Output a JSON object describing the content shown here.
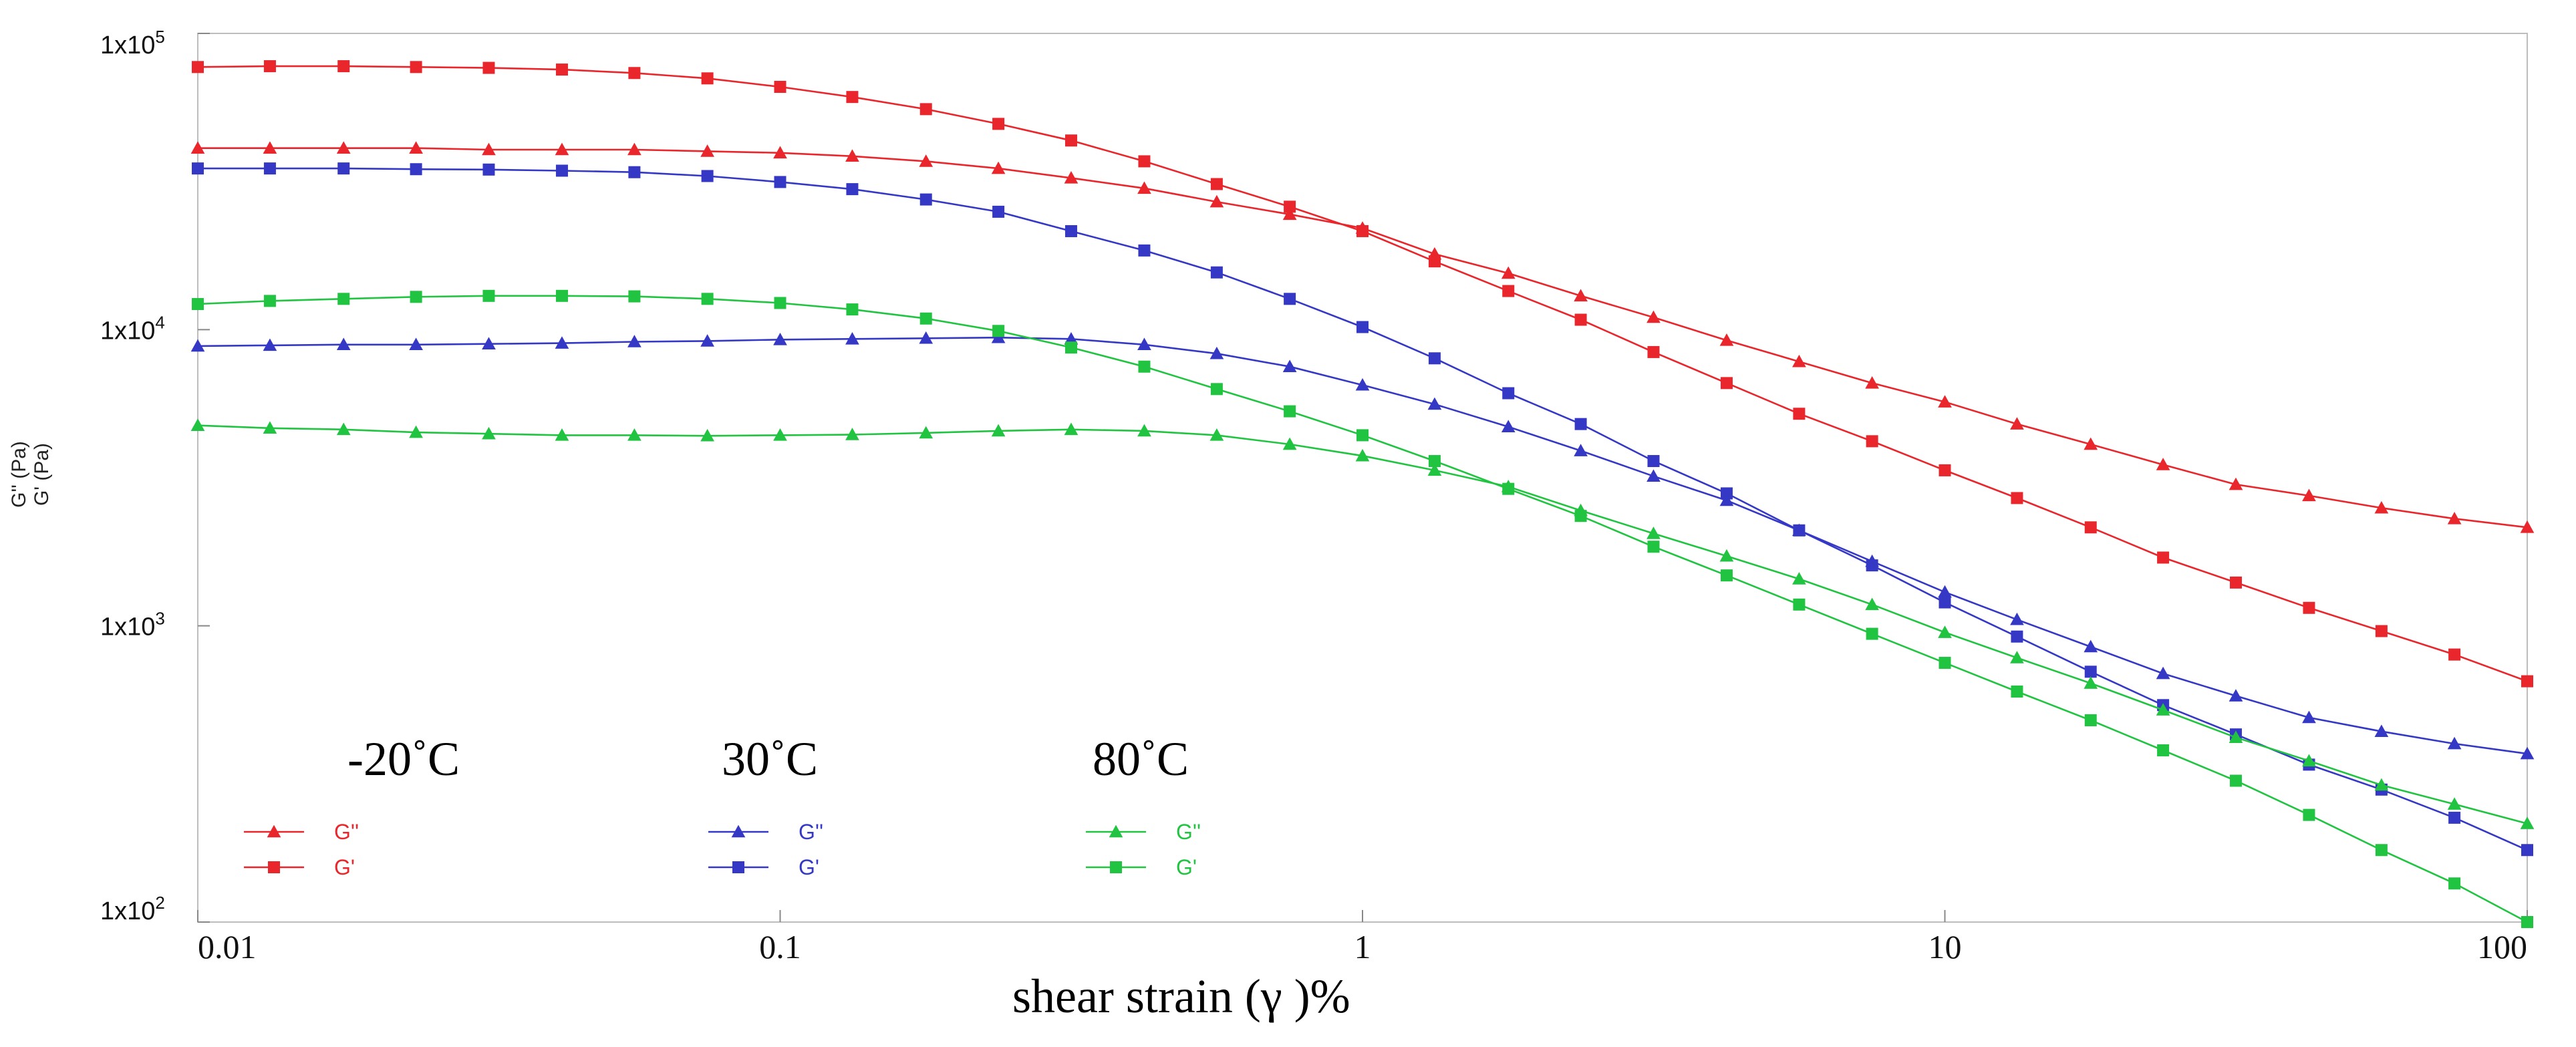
{
  "chart_data": {
    "type": "line",
    "x_scale": "log",
    "y_scale": "log",
    "xlim": [
      0.01,
      100
    ],
    "ylim": [
      100,
      100000
    ],
    "xlabel": "shear strain   (γ )%",
    "ylabel_top": "G'' (Pa)",
    "ylabel_bottom": "G' (Pa)",
    "x_ticks": [
      {
        "value": 0.01,
        "label": "0.01"
      },
      {
        "value": 0.1,
        "label": "0.1"
      },
      {
        "value": 1,
        "label": "1"
      },
      {
        "value": 10,
        "label": "10"
      },
      {
        "value": 100,
        "label": "100"
      }
    ],
    "y_ticks": [
      {
        "value": 100000,
        "base": "1x10",
        "exp": "5"
      },
      {
        "value": 10000,
        "base": "1x10",
        "exp": "4"
      },
      {
        "value": 1000,
        "base": "1x10",
        "exp": "3"
      },
      {
        "value": 100,
        "base": "1x10",
        "exp": "2"
      }
    ],
    "x": [
      0.01,
      0.0133,
      0.0178,
      0.0237,
      0.0316,
      0.0422,
      0.0562,
      0.075,
      0.1,
      0.133,
      0.178,
      0.237,
      0.316,
      0.422,
      0.562,
      0.75,
      1,
      1.33,
      1.78,
      2.37,
      3.16,
      4.22,
      5.62,
      7.5,
      10,
      13.3,
      17.8,
      23.7,
      31.6,
      42.2,
      56.2,
      75,
      100
    ],
    "series": [
      {
        "name": "G''",
        "temperature": "-20˚C",
        "color": "#e8262b",
        "marker": "triangle",
        "values": [
          41000,
          41000,
          41000,
          41000,
          40500,
          40500,
          40500,
          40000,
          39500,
          38500,
          37000,
          35000,
          32500,
          30000,
          27000,
          24500,
          22000,
          18000,
          15500,
          13000,
          11000,
          9200,
          7800,
          6600,
          5700,
          4800,
          4100,
          3500,
          3000,
          2750,
          2500,
          2300,
          2150
        ]
      },
      {
        "name": "G'",
        "temperature": "-20˚C",
        "color": "#e8262b",
        "marker": "square",
        "values": [
          77000,
          77500,
          77500,
          77000,
          76500,
          75500,
          73500,
          70500,
          66000,
          61000,
          55500,
          49500,
          43500,
          37000,
          31000,
          26000,
          21500,
          17000,
          13500,
          10800,
          8400,
          6600,
          5200,
          4200,
          3350,
          2700,
          2150,
          1700,
          1400,
          1150,
          960,
          800,
          650
        ]
      },
      {
        "name": "G''",
        "temperature": "30˚C",
        "color": "#3438c4",
        "marker": "triangle",
        "values": [
          8800,
          8850,
          8900,
          8900,
          8950,
          9000,
          9100,
          9150,
          9250,
          9300,
          9350,
          9400,
          9300,
          8900,
          8300,
          7500,
          6500,
          5600,
          4700,
          3900,
          3200,
          2650,
          2100,
          1650,
          1300,
          1050,
          850,
          690,
          580,
          490,
          440,
          400,
          370
        ]
      },
      {
        "name": "G'",
        "temperature": "30˚C",
        "color": "#3438c4",
        "marker": "square",
        "values": [
          35000,
          35000,
          35000,
          34800,
          34700,
          34400,
          34000,
          33000,
          31500,
          29800,
          27500,
          25000,
          21500,
          18500,
          15600,
          12700,
          10200,
          8000,
          6100,
          4800,
          3600,
          2800,
          2100,
          1600,
          1200,
          920,
          700,
          540,
          430,
          340,
          280,
          225,
          175
        ]
      },
      {
        "name": "G''",
        "temperature": "80˚C",
        "color": "#20c440",
        "marker": "triangle",
        "values": [
          4750,
          4650,
          4600,
          4500,
          4450,
          4400,
          4400,
          4380,
          4400,
          4420,
          4480,
          4550,
          4600,
          4550,
          4400,
          4100,
          3750,
          3350,
          2950,
          2450,
          2050,
          1720,
          1440,
          1180,
          950,
          780,
          640,
          520,
          420,
          350,
          290,
          250,
          215
        ]
      },
      {
        "name": "G'",
        "temperature": "80˚C",
        "color": "#20c440",
        "marker": "square",
        "values": [
          12200,
          12500,
          12700,
          12900,
          13000,
          13000,
          12950,
          12700,
          12300,
          11700,
          10900,
          9900,
          8700,
          7500,
          6300,
          5300,
          4400,
          3600,
          2900,
          2350,
          1850,
          1480,
          1180,
          940,
          750,
          600,
          480,
          380,
          300,
          230,
          175,
          135,
          100
        ]
      }
    ],
    "legend": [
      {
        "temperature": "-20˚C",
        "items": [
          {
            "label": "G''",
            "marker": "triangle"
          },
          {
            "label": "G'",
            "marker": "square"
          }
        ],
        "color": "#e8262b"
      },
      {
        "temperature": "30˚C",
        "items": [
          {
            "label": "G''",
            "marker": "triangle"
          },
          {
            "label": "G'",
            "marker": "square"
          }
        ],
        "color": "#3438c4"
      },
      {
        "temperature": "80˚C",
        "items": [
          {
            "label": "G''",
            "marker": "triangle"
          },
          {
            "label": "G'",
            "marker": "square"
          }
        ],
        "color": "#20c440"
      }
    ],
    "legend_position": "bottom-left",
    "grid": false
  }
}
